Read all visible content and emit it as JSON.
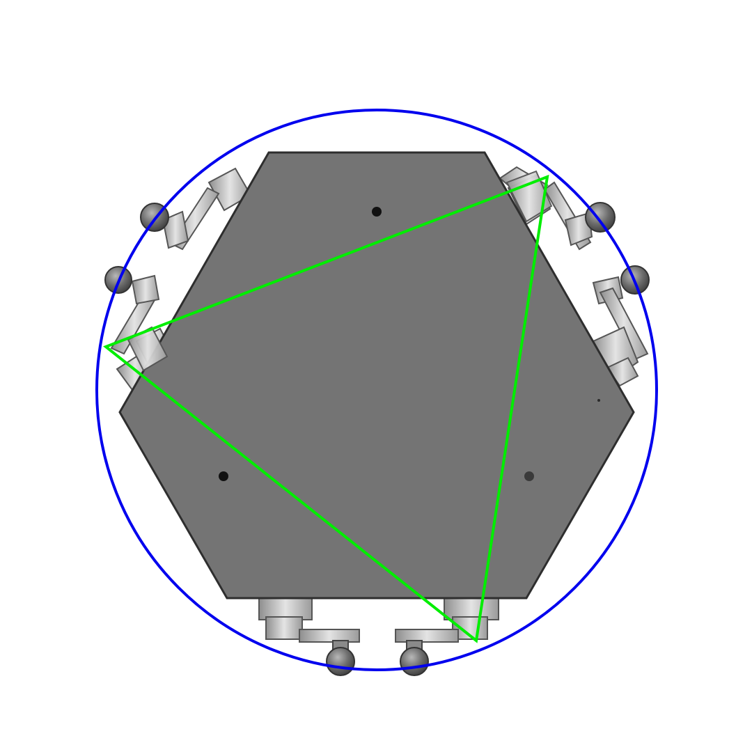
{
  "scene": {
    "background": "#ffffff",
    "circle_color": "#0000ee",
    "triangle_color": "#00ee00",
    "plate_color": "#747474",
    "plate_edge_color": "#2e2e2e",
    "bracket_light": "#d6d6d6",
    "bracket_mid": "#a8a8a8",
    "bracket_dark": "#5a5a5a",
    "ball_color": "#6e6e6e",
    "hole_color": "#111111"
  },
  "parts": {
    "plate": "hexagonal-plate",
    "circle": "enclosing-circle",
    "triangle": "contact-triangle",
    "leg_count": 6,
    "hole_count": 3
  }
}
